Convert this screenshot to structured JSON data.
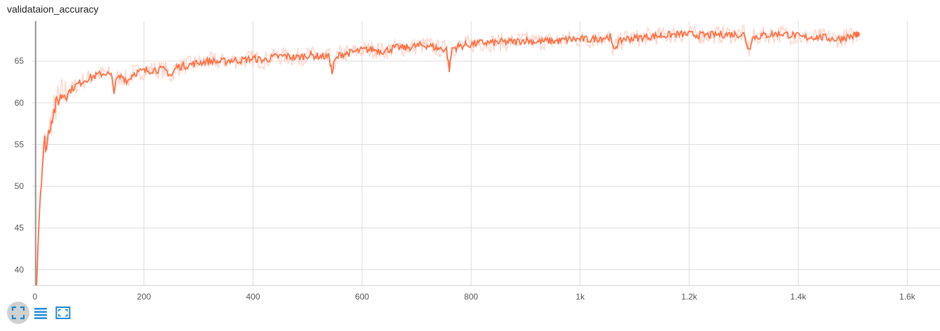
{
  "card": {
    "title": "validataion_accuracy"
  },
  "colors": {
    "smoothed": "#ff7043",
    "raw": "#ffcdc0",
    "grid": "#dddddd",
    "axis": "#9e9e9e",
    "icon_blue": "#1a88d4",
    "icon_active_bg": "#d0d0d0"
  },
  "toolbar": {
    "buttons": [
      {
        "icon": "fit-domain-icon",
        "active": true
      },
      {
        "icon": "log-scale-icon",
        "active": false
      },
      {
        "icon": "fullscreen-icon",
        "active": false
      }
    ]
  },
  "chart_data": {
    "type": "line",
    "title": "validataion_accuracy",
    "xlabel": "",
    "ylabel": "",
    "xlim": [
      -5,
      1660
    ],
    "ylim": [
      38.1,
      69.8
    ],
    "x_ticks": [
      0,
      200,
      400,
      600,
      800,
      1000,
      1200,
      1400,
      1600
    ],
    "x_tick_labels": [
      "0",
      "200",
      "400",
      "600",
      "800",
      "1k",
      "1.2k",
      "1.4k",
      "1.6k"
    ],
    "y_ticks": [
      40,
      45,
      50,
      55,
      60,
      65
    ],
    "y_tick_labels": [
      "40",
      "45",
      "50",
      "55",
      "60",
      "65"
    ],
    "grid": true,
    "legend": "none",
    "series": [
      {
        "role": "smoothed",
        "x": [
          3,
          6,
          9,
          12,
          15,
          18,
          21,
          25,
          30,
          35,
          40,
          45,
          50,
          60,
          70,
          80,
          90,
          100,
          110,
          120,
          130,
          140,
          145,
          150,
          160,
          170,
          180,
          190,
          200,
          220,
          240,
          250,
          260,
          280,
          300,
          320,
          340,
          360,
          380,
          400,
          420,
          440,
          460,
          480,
          500,
          520,
          540,
          545,
          550,
          560,
          580,
          600,
          620,
          640,
          660,
          680,
          700,
          720,
          740,
          755,
          760,
          765,
          780,
          800,
          820,
          840,
          860,
          880,
          900,
          920,
          940,
          960,
          980,
          1000,
          1020,
          1040,
          1055,
          1060,
          1080,
          1100,
          1120,
          1140,
          1160,
          1180,
          1200,
          1220,
          1240,
          1260,
          1280,
          1300,
          1310,
          1315,
          1330,
          1350,
          1370,
          1390,
          1410,
          1430,
          1450,
          1470,
          1490,
          1500,
          1508
        ],
        "y": [
          38.2,
          44,
          48,
          51,
          53.5,
          55.5,
          54.5,
          56.5,
          58,
          59,
          60,
          60.5,
          61,
          61.2,
          61.8,
          62.3,
          62.7,
          63,
          63.2,
          63.4,
          63.6,
          63.2,
          61.5,
          62.8,
          63.2,
          62.6,
          63.5,
          63.7,
          63.8,
          64,
          63.9,
          63.2,
          64.3,
          64.5,
          64.8,
          65,
          64.9,
          65.1,
          65.1,
          65.3,
          65.1,
          65.5,
          65.6,
          65.4,
          65.7,
          65.6,
          65.5,
          63.5,
          65,
          65.8,
          66,
          66.3,
          66.4,
          66.2,
          66.6,
          66.6,
          66.8,
          66.9,
          66.5,
          66.4,
          64,
          66.5,
          66.8,
          67,
          67.2,
          67.2,
          67.3,
          67.3,
          67.5,
          67.3,
          67.4,
          67.4,
          67.6,
          67.6,
          67.6,
          67.8,
          67.9,
          66.5,
          67.7,
          67.7,
          67.9,
          68,
          68.1,
          68.2,
          68.2,
          68.1,
          68.1,
          68.2,
          68.2,
          68.2,
          66.3,
          67.8,
          68,
          68.2,
          68.3,
          68.1,
          67.8,
          67.9,
          67.8,
          67.6,
          67.9,
          68,
          68.2
        ]
      }
    ]
  }
}
